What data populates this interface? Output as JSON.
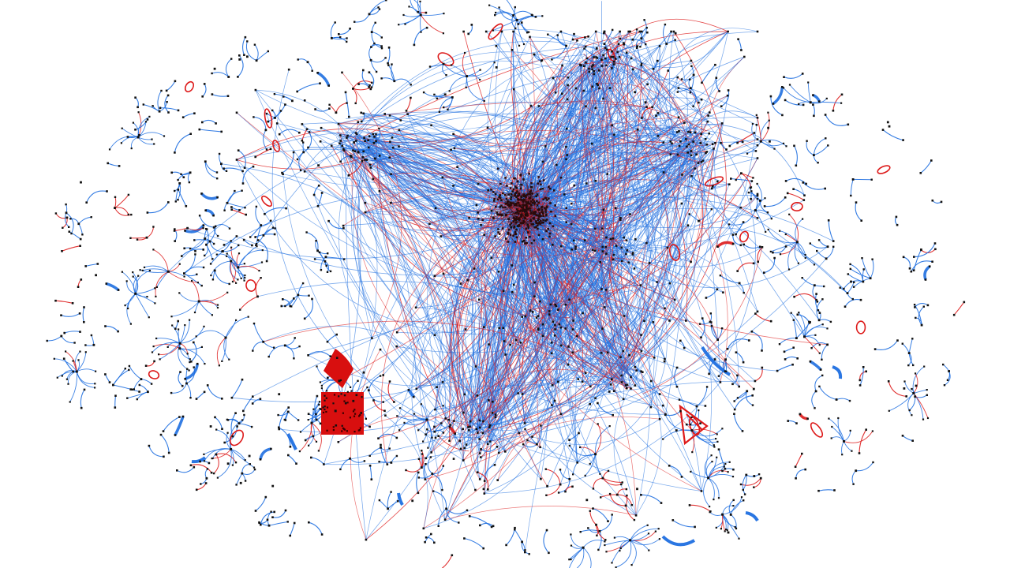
{
  "network": {
    "background_color": "#ffffff",
    "edge_colors": {
      "majority": "#1f6fe0",
      "minority": "#dd1a1a"
    },
    "node_color": "#111111",
    "hub_color": "#2a0a0a",
    "dense_red_block_color": "#d80f0f",
    "layout_style": "force-directed",
    "edge_shape": "curved",
    "has_central_core": true,
    "has_peripheral_fragments": true
  }
}
